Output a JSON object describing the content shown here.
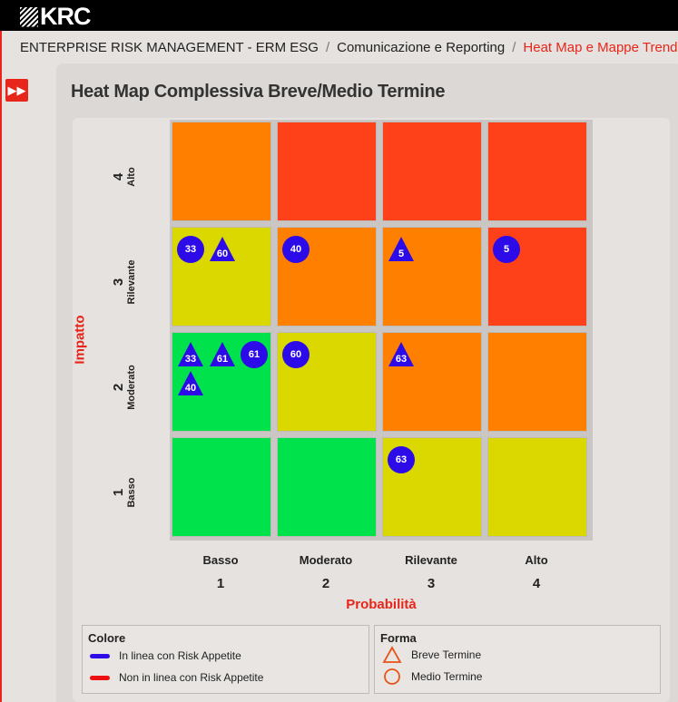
{
  "brand": {
    "logo": "KRC"
  },
  "breadcrumb": {
    "items": [
      "ENTERPRISE RISK MANAGEMENT - ERM ESG",
      "Comunicazione e Reporting",
      "Heat Map e Mappe Trend"
    ],
    "separator": "/"
  },
  "sidebar_toggle": {
    "icon": "double-chevron-right-icon"
  },
  "page_title": "Heat Map Complessiva Breve/Medio Termine",
  "axes": {
    "y_title": "Impatto",
    "x_title": "Probabilità",
    "y_levels": [
      {
        "num": "4",
        "name": "Alto"
      },
      {
        "num": "3",
        "name": "Rilevante"
      },
      {
        "num": "2",
        "name": "Moderato"
      },
      {
        "num": "1",
        "name": "Basso"
      }
    ],
    "x_levels": [
      {
        "num": "1",
        "name": "Basso"
      },
      {
        "num": "2",
        "name": "Moderato"
      },
      {
        "num": "3",
        "name": "Rilevante"
      },
      {
        "num": "4",
        "name": "Alto"
      }
    ]
  },
  "colors": {
    "green": "#00e24c",
    "yellow": "#dbd800",
    "orange": "#ff7f00",
    "red": "#ff4119",
    "in_line": "#2c0be8",
    "not_in_line": "#ee0f0f",
    "accent": "#e8251a",
    "shape_outline": "#e8531a"
  },
  "chart_data": {
    "type": "heatmap",
    "x_categories": [
      "Basso",
      "Moderato",
      "Rilevante",
      "Alto"
    ],
    "y_categories": [
      "Basso",
      "Moderato",
      "Rilevante",
      "Alto"
    ],
    "cell_colors": [
      [
        "green",
        "green",
        "yellow",
        "yellow"
      ],
      [
        "green",
        "yellow",
        "orange",
        "orange"
      ],
      [
        "yellow",
        "orange",
        "orange",
        "red"
      ],
      [
        "orange",
        "red",
        "red",
        "red"
      ]
    ],
    "markers": [
      {
        "label": "33",
        "shape": "circle",
        "x": 1,
        "y": 3
      },
      {
        "label": "60",
        "shape": "triangle",
        "x": 1,
        "y": 3
      },
      {
        "label": "40",
        "shape": "circle",
        "x": 2,
        "y": 3
      },
      {
        "label": "5",
        "shape": "triangle",
        "x": 3,
        "y": 3
      },
      {
        "label": "5",
        "shape": "circle",
        "x": 4,
        "y": 3
      },
      {
        "label": "33",
        "shape": "triangle",
        "x": 1,
        "y": 2
      },
      {
        "label": "61",
        "shape": "triangle",
        "x": 1,
        "y": 2
      },
      {
        "label": "61",
        "shape": "circle",
        "x": 1,
        "y": 2
      },
      {
        "label": "40",
        "shape": "triangle",
        "x": 1,
        "y": 2
      },
      {
        "label": "60",
        "shape": "circle",
        "x": 2,
        "y": 2
      },
      {
        "label": "63",
        "shape": "triangle",
        "x": 3,
        "y": 2
      },
      {
        "label": "63",
        "shape": "circle",
        "x": 3,
        "y": 1
      }
    ]
  },
  "legend": {
    "color": {
      "title": "Colore",
      "items": [
        {
          "label": "In linea con Risk Appetite",
          "color": "#2c0be8"
        },
        {
          "label": "Non in linea con Risk Appetite",
          "color": "#ee0f0f"
        }
      ]
    },
    "shape": {
      "title": "Forma",
      "items": [
        {
          "label": "Breve Termine",
          "shape": "triangle-outline-icon"
        },
        {
          "label": "Medio Termine",
          "shape": "circle-outline-icon"
        }
      ]
    }
  }
}
